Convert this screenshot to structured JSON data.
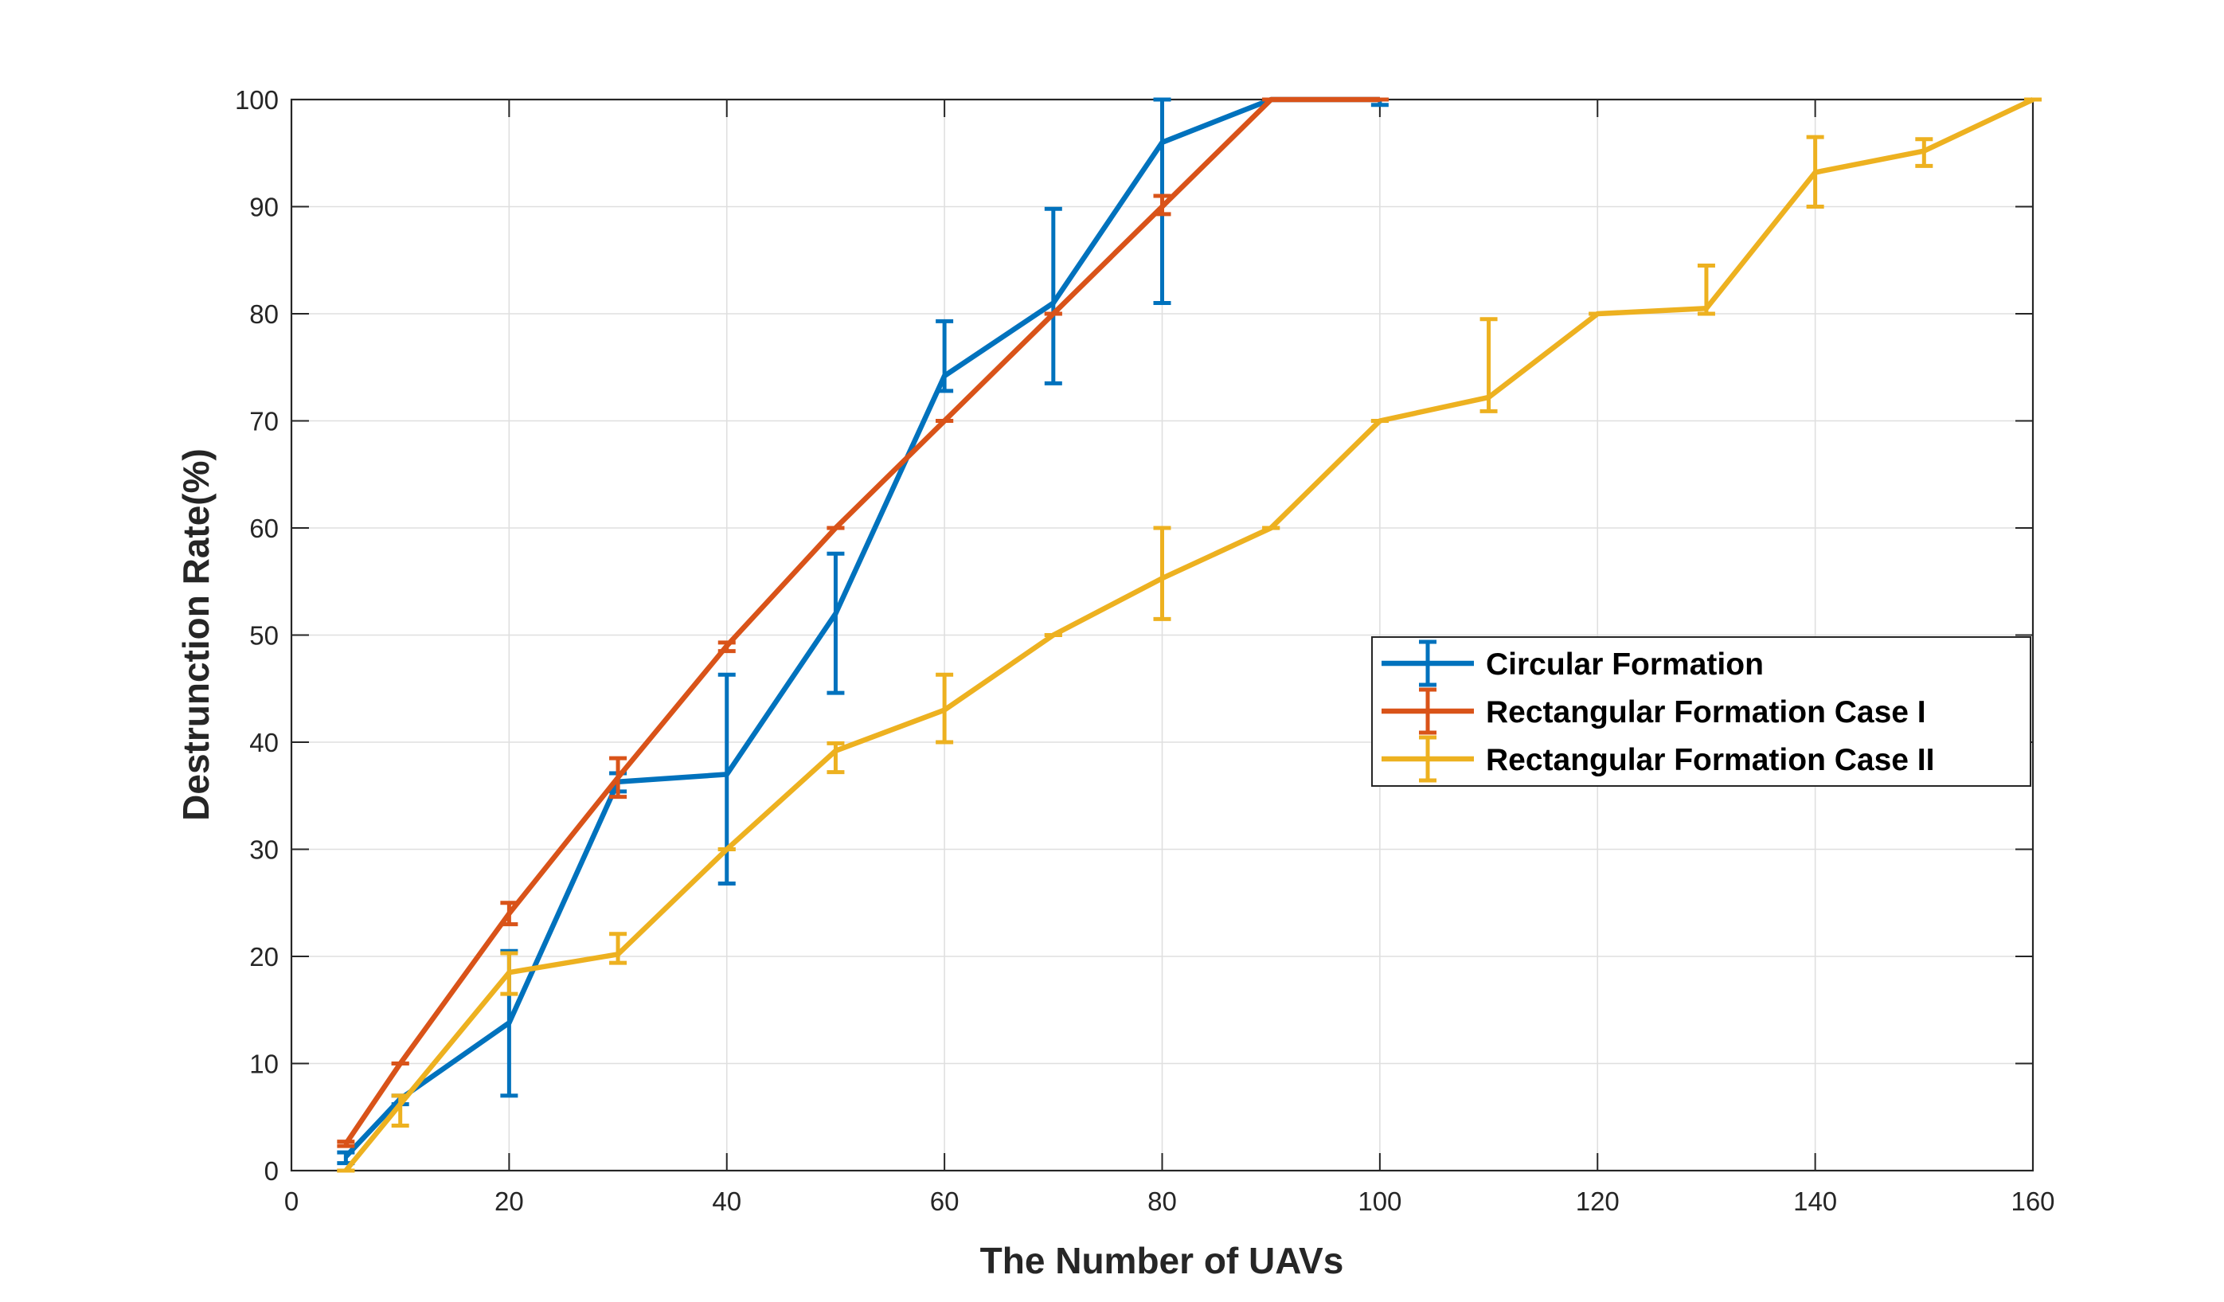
{
  "chart_data": {
    "type": "line",
    "xlabel": "The Number of UAVs",
    "ylabel": "Destrunction Rate(%)",
    "xlim": [
      0,
      160
    ],
    "ylim": [
      0,
      100
    ],
    "xticks": [
      0,
      20,
      40,
      60,
      80,
      100,
      120,
      140,
      160
    ],
    "yticks": [
      0,
      10,
      20,
      30,
      40,
      50,
      60,
      70,
      80,
      90,
      100
    ],
    "grid": true,
    "legend_position": "right",
    "series": [
      {
        "name": "Circular Formation",
        "color": "#0072BD",
        "x": [
          5,
          10,
          20,
          30,
          40,
          50,
          60,
          70,
          80,
          90,
          100
        ],
        "y": [
          1.3,
          6.7,
          13.8,
          36.3,
          37.0,
          52.0,
          74.2,
          81.0,
          96.0,
          100.0,
          100.0
        ],
        "err_low": [
          0.6,
          0.5,
          6.8,
          0.9,
          10.2,
          7.4,
          1.4,
          7.5,
          15.0,
          0,
          0.5
        ],
        "err_high": [
          0.4,
          0.3,
          6.7,
          0.8,
          9.3,
          5.6,
          5.1,
          8.8,
          4.0,
          0,
          0
        ]
      },
      {
        "name": "Rectangular Formation Case I",
        "color": "#D95319",
        "x": [
          5,
          10,
          20,
          30,
          40,
          50,
          60,
          70,
          80,
          90,
          100
        ],
        "y": [
          2.5,
          10.0,
          24.0,
          36.7,
          49.0,
          60.0,
          70.0,
          80.0,
          90.0,
          100.0,
          100.0
        ],
        "err_low": [
          0.2,
          0,
          1.0,
          1.8,
          0.5,
          0,
          0,
          0,
          0.7,
          0,
          0
        ],
        "err_high": [
          0.2,
          0,
          1.0,
          1.8,
          0.3,
          0,
          0,
          0,
          1.0,
          0,
          0
        ]
      },
      {
        "name": "Rectangular Formation Case II",
        "color": "#EDB120",
        "x": [
          5,
          10,
          20,
          30,
          40,
          50,
          60,
          70,
          80,
          90,
          100,
          110,
          120,
          130,
          140,
          150,
          160
        ],
        "y": [
          0,
          6.2,
          18.5,
          20.2,
          30.0,
          39.2,
          43.0,
          50.0,
          55.3,
          60.0,
          70.0,
          72.2,
          80.0,
          80.5,
          93.2,
          95.2,
          100.0
        ],
        "err_low": [
          0,
          2.0,
          2.0,
          0.8,
          0,
          2.0,
          3.0,
          0,
          3.8,
          0,
          0,
          1.3,
          0,
          0.5,
          3.2,
          1.4,
          0
        ],
        "err_high": [
          0,
          0.8,
          1.8,
          1.9,
          0,
          0.7,
          3.3,
          0,
          4.7,
          0,
          0,
          7.3,
          0,
          4.0,
          3.3,
          1.1,
          0
        ]
      }
    ]
  }
}
